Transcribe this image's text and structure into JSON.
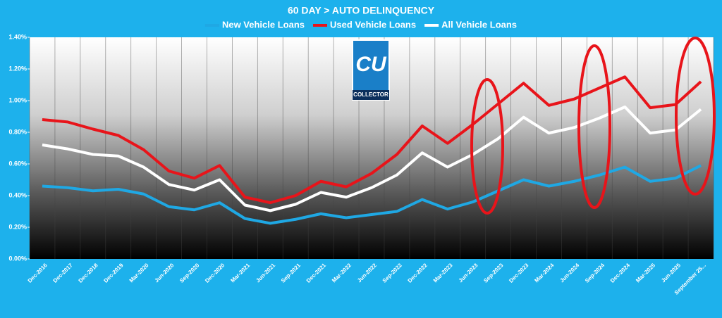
{
  "chart_data": {
    "type": "line",
    "title": "60 DAY > AUTO DELINQUENCY",
    "logo_text": [
      "CU",
      "COLLECTOR"
    ],
    "categories": [
      "Dec-2016",
      "Dec-2017",
      "Dec-2018",
      "Dec-2019",
      "Mar-2020",
      "Jun-2020",
      "Sep-2020",
      "Dec-2020",
      "Mar-2021",
      "Jun-2021",
      "Sep-2021",
      "Dec-2021",
      "Mar-2022",
      "Jun-2022",
      "Sep-2022",
      "Dec-2022",
      "Mar-2023",
      "Jun-2023",
      "Sep-2023",
      "Dec-2023",
      "Mar-2024",
      "Jun-2024",
      "Sep-2024",
      "Dec-2024",
      "Mar-2025",
      "Jun-2025",
      "September 25..."
    ],
    "series": [
      {
        "name": "New Vehicle Loans",
        "color": "#1fa8e4",
        "values": [
          0.46,
          0.45,
          0.43,
          0.44,
          0.41,
          0.33,
          0.31,
          0.355,
          0.255,
          0.225,
          0.25,
          0.285,
          0.26,
          0.28,
          0.3,
          0.375,
          0.315,
          0.36,
          0.43,
          0.5,
          0.46,
          0.49,
          0.53,
          0.58,
          0.49,
          0.51,
          0.59
        ]
      },
      {
        "name": "Used Vehicle Loans",
        "color": "#e8141a",
        "values": [
          0.88,
          0.865,
          0.82,
          0.78,
          0.69,
          0.555,
          0.51,
          0.59,
          0.39,
          0.355,
          0.4,
          0.49,
          0.455,
          0.54,
          0.66,
          0.84,
          0.73,
          0.85,
          0.98,
          1.11,
          0.97,
          1.01,
          1.08,
          1.15,
          0.955,
          0.975,
          1.12
        ]
      },
      {
        "name": "All Vehicle Loans",
        "color": "#ffffff",
        "values": [
          0.72,
          0.695,
          0.66,
          0.65,
          0.58,
          0.47,
          0.435,
          0.5,
          0.34,
          0.305,
          0.345,
          0.42,
          0.39,
          0.45,
          0.53,
          0.67,
          0.58,
          0.66,
          0.76,
          0.895,
          0.795,
          0.83,
          0.89,
          0.96,
          0.795,
          0.815,
          0.945
        ]
      }
    ],
    "ylim": [
      0,
      1.4
    ],
    "yticks": [
      {
        "value": 0,
        "label": "0.00%"
      },
      {
        "value": 0.2,
        "label": "0.20%"
      },
      {
        "value": 0.4,
        "label": "0.40%"
      },
      {
        "value": 0.6,
        "label": "0.60%"
      },
      {
        "value": 0.8,
        "label": "0.80%"
      },
      {
        "value": 1.0,
        "label": "1.00%"
      },
      {
        "value": 1.2,
        "label": "1.20%"
      },
      {
        "value": 1.4,
        "label": "1.40%"
      }
    ],
    "legend": "top"
  }
}
